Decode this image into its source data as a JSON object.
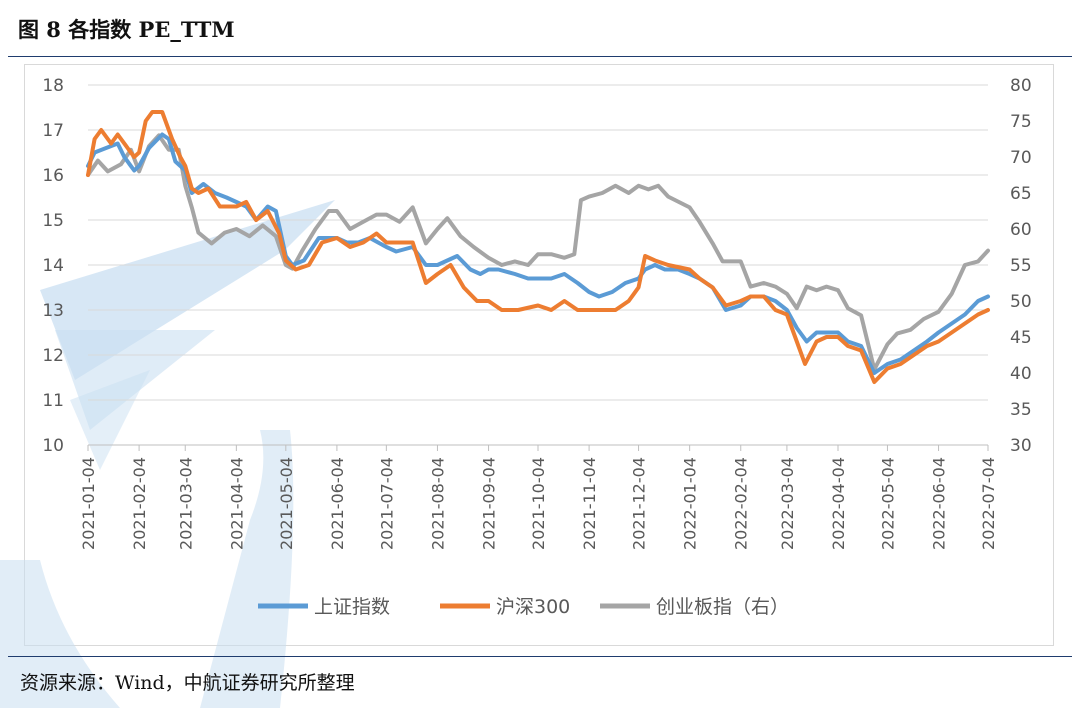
{
  "figure": {
    "title": "图 8  各指数 PE_TTM",
    "source": "资源来源：Wind，中航证券研究所整理"
  },
  "colors": {
    "series_1": "#5b9bd5",
    "series_2": "#ed7d31",
    "series_3": "#a5a5a5",
    "rule": "#1f3c6e",
    "watermark": "#c9dff1"
  },
  "chart_data": {
    "type": "line",
    "title": "",
    "xlabel": "",
    "ylabel": "",
    "ylabel_right": "",
    "ylim": [
      10,
      18
    ],
    "ylim_right": [
      30,
      80
    ],
    "yticks": [
      10,
      11,
      12,
      13,
      14,
      15,
      16,
      17,
      18
    ],
    "yticks_right": [
      30,
      35,
      40,
      45,
      50,
      55,
      60,
      65,
      70,
      75,
      80
    ],
    "grid": true,
    "legend_position": "bottom",
    "x_ticks": [
      "2021-01-04",
      "2021-02-04",
      "2021-03-04",
      "2021-04-04",
      "2021-05-04",
      "2021-06-04",
      "2021-07-04",
      "2021-08-04",
      "2021-09-04",
      "2021-10-04",
      "2021-11-04",
      "2021-12-04",
      "2022-01-04",
      "2022-02-04",
      "2022-03-04",
      "2022-04-04",
      "2022-05-04",
      "2022-06-04",
      "2022-07-04"
    ],
    "series": [
      {
        "name": "上证指数",
        "axis": "left",
        "points": [
          [
            "2021-01-04",
            16.2
          ],
          [
            "2021-01-08",
            16.5
          ],
          [
            "2021-01-15",
            16.6
          ],
          [
            "2021-01-22",
            16.7
          ],
          [
            "2021-01-26",
            16.4
          ],
          [
            "2021-02-01",
            16.1
          ],
          [
            "2021-02-04",
            16.2
          ],
          [
            "2021-02-10",
            16.6
          ],
          [
            "2021-02-18",
            16.9
          ],
          [
            "2021-02-22",
            16.8
          ],
          [
            "2021-02-26",
            16.3
          ],
          [
            "2021-03-04",
            16.1
          ],
          [
            "2021-03-08",
            15.6
          ],
          [
            "2021-03-15",
            15.8
          ],
          [
            "2021-03-22",
            15.6
          ],
          [
            "2021-03-29",
            15.5
          ],
          [
            "2021-04-04",
            15.4
          ],
          [
            "2021-04-10",
            15.3
          ],
          [
            "2021-04-16",
            15.0
          ],
          [
            "2021-04-23",
            15.3
          ],
          [
            "2021-04-28",
            15.2
          ],
          [
            "2021-05-04",
            14.2
          ],
          [
            "2021-05-08",
            14.0
          ],
          [
            "2021-05-15",
            14.1
          ],
          [
            "2021-05-24",
            14.6
          ],
          [
            "2021-06-04",
            14.6
          ],
          [
            "2021-06-10",
            14.5
          ],
          [
            "2021-06-17",
            14.5
          ],
          [
            "2021-06-24",
            14.6
          ],
          [
            "2021-07-04",
            14.4
          ],
          [
            "2021-07-10",
            14.3
          ],
          [
            "2021-07-20",
            14.4
          ],
          [
            "2021-07-28",
            14.0
          ],
          [
            "2021-08-04",
            14.0
          ],
          [
            "2021-08-10",
            14.1
          ],
          [
            "2021-08-16",
            14.2
          ],
          [
            "2021-08-24",
            13.9
          ],
          [
            "2021-08-30",
            13.8
          ],
          [
            "2021-09-04",
            13.9
          ],
          [
            "2021-09-10",
            13.9
          ],
          [
            "2021-09-20",
            13.8
          ],
          [
            "2021-09-28",
            13.7
          ],
          [
            "2021-10-04",
            13.7
          ],
          [
            "2021-10-12",
            13.7
          ],
          [
            "2021-10-20",
            13.8
          ],
          [
            "2021-10-28",
            13.6
          ],
          [
            "2021-11-04",
            13.4
          ],
          [
            "2021-11-10",
            13.3
          ],
          [
            "2021-11-18",
            13.4
          ],
          [
            "2021-11-26",
            13.6
          ],
          [
            "2021-12-04",
            13.7
          ],
          [
            "2021-12-08",
            13.9
          ],
          [
            "2021-12-14",
            14.0
          ],
          [
            "2021-12-20",
            13.9
          ],
          [
            "2021-12-28",
            13.9
          ],
          [
            "2022-01-04",
            13.8
          ],
          [
            "2022-01-10",
            13.7
          ],
          [
            "2022-01-18",
            13.5
          ],
          [
            "2022-01-26",
            13.0
          ],
          [
            "2022-02-04",
            13.1
          ],
          [
            "2022-02-10",
            13.3
          ],
          [
            "2022-02-18",
            13.3
          ],
          [
            "2022-02-25",
            13.2
          ],
          [
            "2022-03-04",
            13.0
          ],
          [
            "2022-03-10",
            12.6
          ],
          [
            "2022-03-16",
            12.3
          ],
          [
            "2022-03-22",
            12.5
          ],
          [
            "2022-03-28",
            12.5
          ],
          [
            "2022-04-04",
            12.5
          ],
          [
            "2022-04-10",
            12.3
          ],
          [
            "2022-04-18",
            12.2
          ],
          [
            "2022-04-26",
            11.6
          ],
          [
            "2022-05-04",
            11.8
          ],
          [
            "2022-05-12",
            11.9
          ],
          [
            "2022-05-20",
            12.1
          ],
          [
            "2022-05-28",
            12.3
          ],
          [
            "2022-06-04",
            12.5
          ],
          [
            "2022-06-12",
            12.7
          ],
          [
            "2022-06-20",
            12.9
          ],
          [
            "2022-06-28",
            13.2
          ],
          [
            "2022-07-04",
            13.3
          ]
        ]
      },
      {
        "name": "沪深300",
        "axis": "left",
        "points": [
          [
            "2021-01-04",
            16.0
          ],
          [
            "2021-01-08",
            16.8
          ],
          [
            "2021-01-12",
            17.0
          ],
          [
            "2021-01-18",
            16.7
          ],
          [
            "2021-01-22",
            16.9
          ],
          [
            "2021-01-28",
            16.6
          ],
          [
            "2021-02-01",
            16.4
          ],
          [
            "2021-02-04",
            16.5
          ],
          [
            "2021-02-08",
            17.2
          ],
          [
            "2021-02-12",
            17.4
          ],
          [
            "2021-02-18",
            17.4
          ],
          [
            "2021-02-24",
            16.8
          ],
          [
            "2021-03-01",
            16.4
          ],
          [
            "2021-03-04",
            16.2
          ],
          [
            "2021-03-08",
            15.7
          ],
          [
            "2021-03-12",
            15.6
          ],
          [
            "2021-03-18",
            15.7
          ],
          [
            "2021-03-25",
            15.3
          ],
          [
            "2021-04-04",
            15.3
          ],
          [
            "2021-04-10",
            15.4
          ],
          [
            "2021-04-16",
            15.0
          ],
          [
            "2021-04-23",
            15.2
          ],
          [
            "2021-04-30",
            14.7
          ],
          [
            "2021-05-04",
            14.1
          ],
          [
            "2021-05-10",
            13.9
          ],
          [
            "2021-05-18",
            14.0
          ],
          [
            "2021-05-26",
            14.5
          ],
          [
            "2021-06-04",
            14.6
          ],
          [
            "2021-06-12",
            14.4
          ],
          [
            "2021-06-20",
            14.5
          ],
          [
            "2021-06-28",
            14.7
          ],
          [
            "2021-07-04",
            14.5
          ],
          [
            "2021-07-12",
            14.5
          ],
          [
            "2021-07-20",
            14.5
          ],
          [
            "2021-07-28",
            13.6
          ],
          [
            "2021-08-04",
            13.8
          ],
          [
            "2021-08-12",
            14.0
          ],
          [
            "2021-08-20",
            13.5
          ],
          [
            "2021-08-28",
            13.2
          ],
          [
            "2021-09-04",
            13.2
          ],
          [
            "2021-09-12",
            13.0
          ],
          [
            "2021-09-22",
            13.0
          ],
          [
            "2021-10-04",
            13.1
          ],
          [
            "2021-10-12",
            13.0
          ],
          [
            "2021-10-20",
            13.2
          ],
          [
            "2021-10-28",
            13.0
          ],
          [
            "2021-11-04",
            13.0
          ],
          [
            "2021-11-12",
            13.0
          ],
          [
            "2021-11-20",
            13.0
          ],
          [
            "2021-11-28",
            13.2
          ],
          [
            "2021-12-04",
            13.5
          ],
          [
            "2021-12-08",
            14.2
          ],
          [
            "2021-12-14",
            14.1
          ],
          [
            "2021-12-22",
            14.0
          ],
          [
            "2022-01-04",
            13.9
          ],
          [
            "2022-01-10",
            13.7
          ],
          [
            "2022-01-18",
            13.5
          ],
          [
            "2022-01-26",
            13.1
          ],
          [
            "2022-02-04",
            13.2
          ],
          [
            "2022-02-10",
            13.3
          ],
          [
            "2022-02-18",
            13.3
          ],
          [
            "2022-02-25",
            13.0
          ],
          [
            "2022-03-04",
            12.9
          ],
          [
            "2022-03-08",
            12.5
          ],
          [
            "2022-03-15",
            11.8
          ],
          [
            "2022-03-22",
            12.3
          ],
          [
            "2022-03-28",
            12.4
          ],
          [
            "2022-04-04",
            12.4
          ],
          [
            "2022-04-10",
            12.2
          ],
          [
            "2022-04-18",
            12.1
          ],
          [
            "2022-04-26",
            11.4
          ],
          [
            "2022-05-04",
            11.7
          ],
          [
            "2022-05-12",
            11.8
          ],
          [
            "2022-05-20",
            12.0
          ],
          [
            "2022-05-28",
            12.2
          ],
          [
            "2022-06-04",
            12.3
          ],
          [
            "2022-06-12",
            12.5
          ],
          [
            "2022-06-20",
            12.7
          ],
          [
            "2022-06-28",
            12.9
          ],
          [
            "2022-07-04",
            13.0
          ]
        ]
      },
      {
        "name": "创业板指（右）",
        "axis": "right",
        "points": [
          [
            "2021-01-04",
            67.5
          ],
          [
            "2021-01-10",
            69.5
          ],
          [
            "2021-01-16",
            68.0
          ],
          [
            "2021-01-24",
            69.0
          ],
          [
            "2021-01-30",
            71.0
          ],
          [
            "2021-02-04",
            68.0
          ],
          [
            "2021-02-10",
            71.5
          ],
          [
            "2021-02-16",
            73.0
          ],
          [
            "2021-02-22",
            71.0
          ],
          [
            "2021-02-28",
            71.0
          ],
          [
            "2021-03-04",
            66.0
          ],
          [
            "2021-03-08",
            63.0
          ],
          [
            "2021-03-12",
            59.5
          ],
          [
            "2021-03-20",
            58.0
          ],
          [
            "2021-03-28",
            59.5
          ],
          [
            "2021-04-04",
            60.0
          ],
          [
            "2021-04-12",
            59.0
          ],
          [
            "2021-04-20",
            60.5
          ],
          [
            "2021-04-28",
            59.0
          ],
          [
            "2021-05-04",
            55.0
          ],
          [
            "2021-05-08",
            54.5
          ],
          [
            "2021-05-14",
            57.0
          ],
          [
            "2021-05-22",
            60.0
          ],
          [
            "2021-05-30",
            62.5
          ],
          [
            "2021-06-04",
            62.5
          ],
          [
            "2021-06-12",
            60.0
          ],
          [
            "2021-06-20",
            61.0
          ],
          [
            "2021-06-28",
            62.0
          ],
          [
            "2021-07-04",
            62.0
          ],
          [
            "2021-07-12",
            61.0
          ],
          [
            "2021-07-20",
            63.0
          ],
          [
            "2021-07-28",
            58.0
          ],
          [
            "2021-08-04",
            60.0
          ],
          [
            "2021-08-10",
            61.5
          ],
          [
            "2021-08-18",
            59.0
          ],
          [
            "2021-08-26",
            57.5
          ],
          [
            "2021-09-04",
            56.0
          ],
          [
            "2021-09-12",
            55.0
          ],
          [
            "2021-09-20",
            55.5
          ],
          [
            "2021-09-28",
            55.0
          ],
          [
            "2021-10-04",
            56.5
          ],
          [
            "2021-10-12",
            56.5
          ],
          [
            "2021-10-20",
            56.0
          ],
          [
            "2021-10-26",
            56.5
          ],
          [
            "2021-10-30",
            64.0
          ],
          [
            "2021-11-04",
            64.5
          ],
          [
            "2021-11-12",
            65.0
          ],
          [
            "2021-11-20",
            66.0
          ],
          [
            "2021-11-28",
            65.0
          ],
          [
            "2021-12-04",
            66.0
          ],
          [
            "2021-12-10",
            65.5
          ],
          [
            "2021-12-16",
            66.0
          ],
          [
            "2021-12-22",
            64.5
          ],
          [
            "2022-01-04",
            63.0
          ],
          [
            "2022-01-10",
            61.0
          ],
          [
            "2022-01-18",
            58.0
          ],
          [
            "2022-01-24",
            55.5
          ],
          [
            "2022-02-04",
            55.5
          ],
          [
            "2022-02-10",
            52.0
          ],
          [
            "2022-02-18",
            52.5
          ],
          [
            "2022-02-25",
            52.0
          ],
          [
            "2022-03-04",
            51.0
          ],
          [
            "2022-03-10",
            49.0
          ],
          [
            "2022-03-16",
            52.0
          ],
          [
            "2022-03-22",
            51.5
          ],
          [
            "2022-03-28",
            52.0
          ],
          [
            "2022-04-04",
            51.5
          ],
          [
            "2022-04-10",
            49.0
          ],
          [
            "2022-04-18",
            48.0
          ],
          [
            "2022-04-26",
            40.5
          ],
          [
            "2022-05-04",
            44.0
          ],
          [
            "2022-05-10",
            45.5
          ],
          [
            "2022-05-18",
            46.0
          ],
          [
            "2022-05-26",
            47.5
          ],
          [
            "2022-06-04",
            48.5
          ],
          [
            "2022-06-12",
            51.0
          ],
          [
            "2022-06-20",
            55.0
          ],
          [
            "2022-06-28",
            55.5
          ],
          [
            "2022-07-04",
            57.0
          ]
        ]
      }
    ]
  }
}
